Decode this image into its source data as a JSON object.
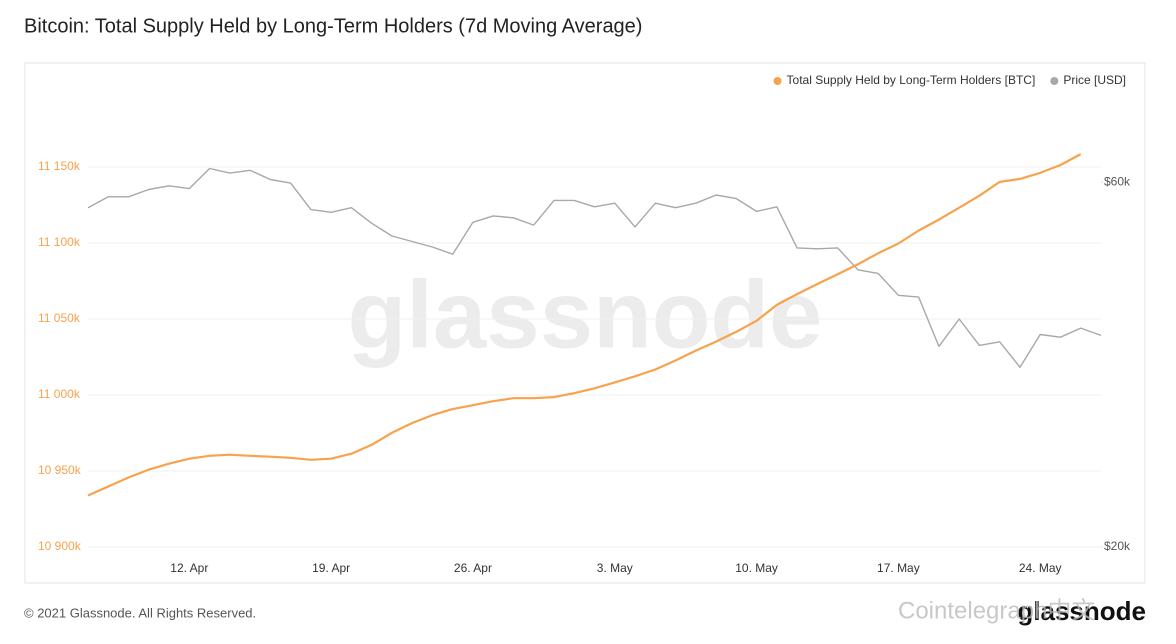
{
  "title": "Bitcoin: Total Supply Held by Long-Term Holders (7d Moving Average)",
  "footer": "© 2021 Glassnode. All Rights Reserved.",
  "logo": "glassnode",
  "overlay": "Cointelegraph中文",
  "chart_data": {
    "type": "line",
    "watermark": "glassnode",
    "grid": true,
    "legend": "top-right",
    "categories": [
      null,
      null,
      null,
      null,
      null,
      "12. Apr",
      null,
      null,
      null,
      null,
      null,
      null,
      "19. Apr",
      null,
      null,
      null,
      null,
      null,
      null,
      "26. Apr",
      null,
      null,
      null,
      null,
      null,
      null,
      "3. May",
      null,
      null,
      null,
      null,
      null,
      null,
      "10. May",
      null,
      null,
      null,
      null,
      null,
      null,
      "17. May",
      null,
      null,
      null,
      null,
      null,
      null,
      "24. May",
      null,
      null,
      null
    ],
    "series": [
      {
        "name": "Total Supply Held by Long-Term Holders [BTC]",
        "color": "#f7a24c",
        "values": [
          10933900,
          10939800,
          10945700,
          10950900,
          10954800,
          10958100,
          10960000,
          10960700,
          10960000,
          10959400,
          10958700,
          10957400,
          10958100,
          10961400,
          10967200,
          10975100,
          10981600,
          10986800,
          10990700,
          10993300,
          10995900,
          10997900,
          10997900,
          10998600,
          11001200,
          11004400,
          11008300,
          11012300,
          11016800,
          11022700,
          11029200,
          11035100,
          11041600,
          11048800,
          11059300,
          11066400,
          11073000,
          11079500,
          11086000,
          11093200,
          11099700,
          11108200,
          11115400,
          11123200,
          11131100,
          11140200,
          11142200,
          11146100,
          11151300,
          11158500,
          null
        ]
      },
      {
        "name": "Price [USD]",
        "color": "#a8a8a8",
        "axis": "y2",
        "values": [
          57200,
          58400,
          58400,
          59200,
          59600,
          59300,
          61500,
          61000,
          61300,
          60300,
          59900,
          57000,
          56700,
          57200,
          55500,
          54100,
          53500,
          52900,
          52100,
          55600,
          56300,
          56100,
          55300,
          58000,
          58000,
          57300,
          57700,
          55100,
          57700,
          57200,
          57700,
          58600,
          58200,
          56800,
          57300,
          52800,
          52700,
          52800,
          50400,
          50000,
          47600,
          47400,
          42000,
          45000,
          42100,
          42500,
          39700,
          43300,
          43000,
          44000,
          43200
        ]
      }
    ],
    "ylim": [
      10900000,
      11200000
    ],
    "yticks": [
      {
        "value": 10900000,
        "label": "10 900k"
      },
      {
        "value": 10950000,
        "label": "10 950k"
      },
      {
        "value": 11000000,
        "label": "11 000k"
      },
      {
        "value": 11050000,
        "label": "11 050k"
      },
      {
        "value": 11100000,
        "label": "11 100k"
      },
      {
        "value": 11150000,
        "label": "11 150k"
      }
    ],
    "y2lim": [
      20000,
      70000
    ],
    "y2ticks": [
      {
        "value": 20000,
        "label": "$20k"
      },
      {
        "value": 60000,
        "label": "$60k"
      }
    ]
  }
}
